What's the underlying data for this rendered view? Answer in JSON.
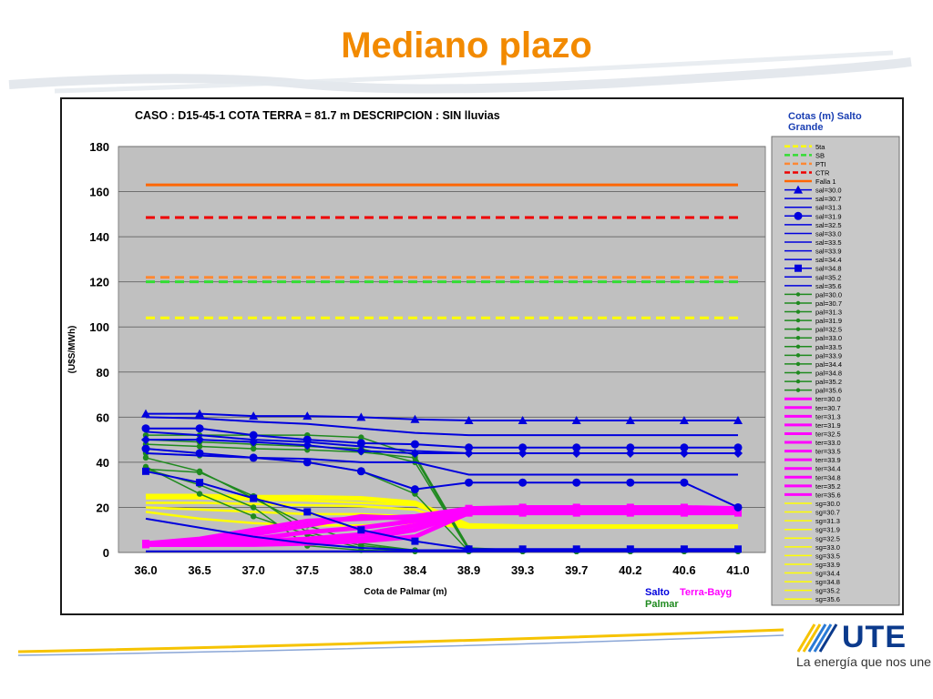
{
  "page": {
    "title": "Mediano plazo"
  },
  "logo": {
    "name": "UTE",
    "tagline": "La energía que nos une"
  },
  "colors": {
    "title": "#f28a00",
    "plot_bg": "#c0c0c0",
    "salto": "#0000dd",
    "palmar": "#1f8a1f",
    "terra": "#ff00ff",
    "sg": "#ffff00",
    "five": "#ffff00",
    "sb": "#33dd33",
    "pti": "#ff8833",
    "ctr": "#ee0000",
    "falla": "#ff6600"
  },
  "chart_data": {
    "type": "line",
    "title": "CASO : D15-45-1 COTA TERRA = 81.7 m  DESCRIPCION :    SIN lluvias",
    "xlabel": "Cota de Palmar (m)",
    "ylabel": "(U$S/MWh)",
    "categories": [
      "36.0",
      "36.5",
      "37.0",
      "37.5",
      "38.0",
      "38.4",
      "38.9",
      "39.3",
      "39.7",
      "40.2",
      "40.6",
      "41.0"
    ],
    "ylim": [
      0,
      180
    ],
    "yticks": [
      0,
      20,
      40,
      60,
      80,
      100,
      120,
      140,
      160,
      180
    ],
    "grid": true,
    "legend_title": "Cotas (m) Salto Grande",
    "legend_position": "right",
    "bottom_labels": {
      "salto": "Salto",
      "terra": "Terra-Bayg",
      "palmar": "Palmar"
    },
    "reference_series": [
      {
        "name": "5ta",
        "value": 104,
        "color": "#ffff00",
        "dash": true
      },
      {
        "name": "SB",
        "value": 120,
        "color": "#33dd33",
        "dash": true
      },
      {
        "name": "PTI",
        "value": 122,
        "color": "#ff8833",
        "dash": true
      },
      {
        "name": "CTR",
        "value": 148.5,
        "color": "#ee0000",
        "dash": true
      },
      {
        "name": "Falla 1",
        "value": 163,
        "color": "#ff6600",
        "dash": false
      }
    ],
    "legend_names": [
      "5ta",
      "SB",
      "PTI",
      "CTR",
      "Falla 1",
      "sal=30.0",
      "sal=30.7",
      "sal=31.3",
      "sal=31.9",
      "sal=32.5",
      "sal=33.0",
      "sal=33.5",
      "sal=33.9",
      "sal=34.4",
      "sal=34.8",
      "sal=35.2",
      "sal=35.6",
      "pal=30.0",
      "pal=30.7",
      "pal=31.3",
      "pal=31.9",
      "pal=32.5",
      "pal=33.0",
      "pal=33.5",
      "pal=33.9",
      "pal=34.4",
      "pal=34.8",
      "pal=35.2",
      "pal=35.6",
      "ter=30.0",
      "ter=30.7",
      "ter=31.3",
      "ter=31.9",
      "ter=32.5",
      "ter=33.0",
      "ter=33.5",
      "ter=33.9",
      "ter=34.4",
      "ter=34.8",
      "ter=35.2",
      "ter=35.6",
      "sg=30.0",
      "sg=30.7",
      "sg=31.3",
      "sg=31.9",
      "sg=32.5",
      "sg=33.0",
      "sg=33.5",
      "sg=33.9",
      "sg=34.4",
      "sg=34.8",
      "sg=35.2",
      "sg=35.6"
    ],
    "salto_series": [
      {
        "values": [
          61.5,
          61.5,
          60.5,
          60.5,
          60,
          59,
          58.5,
          58.5,
          58.5,
          58.5,
          58.5,
          58.5
        ],
        "marker": "triangle"
      },
      {
        "values": [
          60,
          59.5,
          58,
          57,
          55,
          53,
          52,
          52,
          52,
          52,
          52,
          52
        ],
        "marker": "none"
      },
      {
        "values": [
          55,
          55,
          52,
          50,
          48.5,
          48,
          46.5,
          46.5,
          46.5,
          46.5,
          46.5,
          46.5
        ],
        "marker": "circle"
      },
      {
        "values": [
          53.5,
          52,
          50,
          49,
          47,
          45,
          44,
          44,
          44,
          44,
          44,
          44
        ],
        "marker": "none"
      },
      {
        "values": [
          50,
          50,
          49,
          47.5,
          45,
          44,
          44,
          44,
          44,
          44,
          44,
          44
        ],
        "marker": "diamond"
      },
      {
        "values": [
          46,
          44,
          42,
          40,
          36,
          28,
          31,
          31,
          31,
          31,
          31,
          20
        ],
        "marker": "circle"
      },
      {
        "values": [
          44,
          43,
          42,
          41.5,
          40,
          40,
          34.5,
          34.5,
          34.5,
          34.5,
          34.5,
          34.5
        ],
        "marker": "none"
      },
      {
        "values": [
          36,
          31,
          24,
          18,
          10,
          5,
          1.5,
          1.5,
          1.5,
          1.5,
          1.5,
          1.5
        ],
        "marker": "square"
      },
      {
        "values": [
          15,
          11,
          7,
          4,
          2,
          1,
          1,
          1,
          1,
          1,
          1,
          1
        ],
        "marker": "none"
      },
      {
        "values": [
          0.5,
          0.5,
          0.5,
          0.5,
          0.5,
          0.5,
          0.5,
          0.5,
          0.5,
          0.5,
          0.5,
          0.5
        ],
        "marker": "none"
      }
    ],
    "palmar_series": [
      {
        "values": [
          52,
          52,
          52,
          52,
          51,
          43,
          2,
          1,
          1,
          1,
          1,
          1
        ]
      },
      {
        "values": [
          50,
          49,
          48,
          47,
          46,
          40,
          1,
          0.5,
          0.5,
          0.5,
          0.5,
          0.5
        ]
      },
      {
        "values": [
          48,
          47,
          46,
          45.5,
          44.5,
          42,
          1,
          0.5,
          0.5,
          0.5,
          0.5,
          0.5
        ]
      },
      {
        "values": [
          44,
          43,
          42,
          40,
          36,
          26,
          0.5,
          0.5,
          0.5,
          0.5,
          0.5,
          0.5
        ]
      },
      {
        "values": [
          42,
          36,
          24,
          12,
          4,
          1,
          0.5,
          0.5,
          0.5,
          0.5,
          0.5,
          0.5
        ]
      },
      {
        "values": [
          38,
          26,
          16,
          8,
          2,
          0.5,
          0.5,
          0.5,
          0.5,
          0.5,
          0.5,
          0.5
        ]
      },
      {
        "values": [
          37,
          35.5,
          25,
          9,
          3,
          1,
          0.5,
          0.5,
          0.5,
          0.5,
          0.5,
          0.5
        ]
      },
      {
        "values": [
          37,
          30,
          20,
          3,
          1,
          0.5,
          0.5,
          0.5,
          0.5,
          0.5,
          0.5,
          0.5
        ]
      }
    ],
    "terra_series": [
      {
        "values": [
          4,
          6,
          10,
          14,
          15,
          16,
          19.5,
          20,
          20,
          20,
          20,
          19.5
        ]
      },
      {
        "values": [
          4,
          5,
          8,
          12,
          16,
          15,
          19,
          19.5,
          19.5,
          19.5,
          19.5,
          19
        ]
      },
      {
        "values": [
          4,
          4,
          6,
          9,
          11,
          14,
          18.5,
          19,
          19,
          19,
          19,
          18.5
        ]
      },
      {
        "values": [
          4,
          4,
          5,
          6,
          8,
          12,
          18,
          18.5,
          18.5,
          18.5,
          18.5,
          18
        ]
      },
      {
        "values": [
          3.5,
          3.5,
          4,
          5,
          6,
          10,
          18,
          18,
          18,
          18,
          18,
          18
        ]
      },
      {
        "values": [
          3.5,
          3.5,
          3.5,
          4,
          5,
          7,
          17.5,
          17.5,
          17.5,
          17.5,
          17.5,
          17.5
        ]
      }
    ],
    "sg_series": [
      {
        "values": [
          25,
          25,
          24.5,
          24.5,
          24,
          22,
          12,
          11.5,
          11.5,
          11.5,
          11.5,
          11.5
        ]
      },
      {
        "values": [
          24,
          24,
          23.5,
          23,
          22,
          21,
          12,
          11.5,
          11.5,
          11.5,
          11.5,
          11.5
        ]
      },
      {
        "values": [
          22,
          22,
          21.5,
          21,
          20.5,
          19,
          11.5,
          11,
          11,
          11,
          11,
          11
        ]
      },
      {
        "values": [
          20,
          19,
          18,
          17,
          17,
          16,
          11,
          11,
          11,
          11,
          11,
          11
        ]
      },
      {
        "values": [
          18,
          15,
          13,
          12,
          12,
          13,
          11,
          11,
          11,
          11,
          11,
          11
        ]
      }
    ]
  }
}
